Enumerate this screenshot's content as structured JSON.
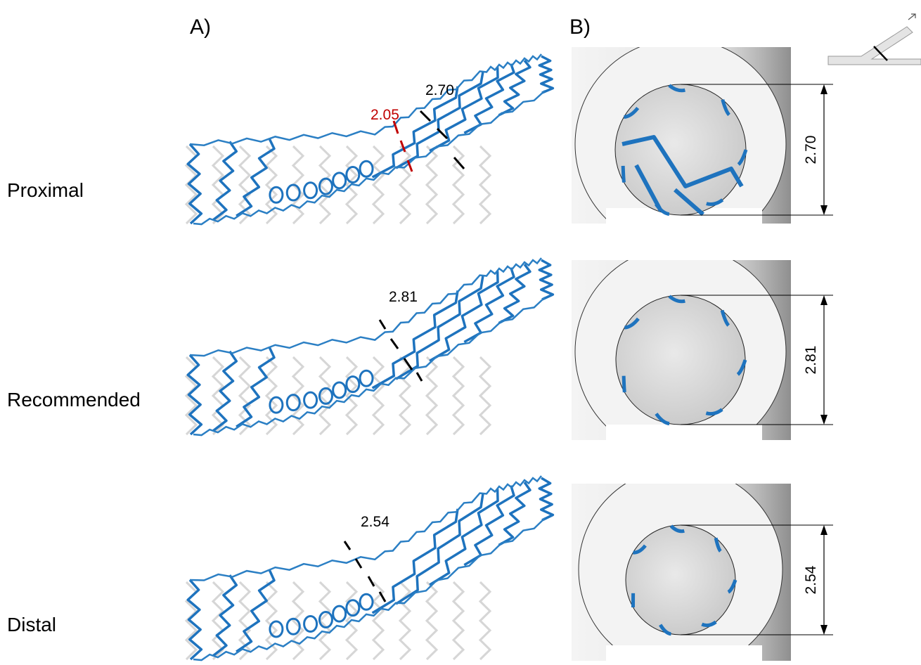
{
  "panels": {
    "a": "A)",
    "b": "B)"
  },
  "rows": [
    {
      "label": "Proximal",
      "a_measurements": [
        "2.70",
        "2.05"
      ],
      "b_measurement": "2.70"
    },
    {
      "label": "Recommended",
      "a_measurements": [
        "2.81"
      ],
      "b_measurement": "2.81"
    },
    {
      "label": "Distal",
      "a_measurements": [
        "2.54"
      ],
      "b_measurement": "2.54"
    }
  ]
}
